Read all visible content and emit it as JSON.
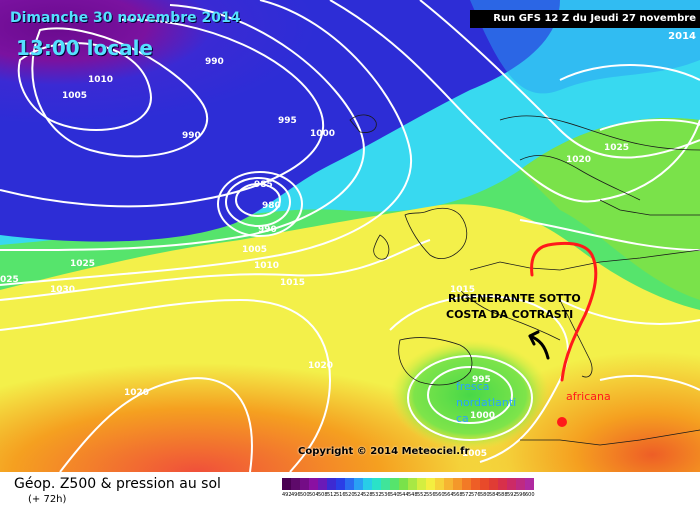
{
  "header": {
    "date_line": "Dimanche 30 novembre 2014",
    "time_line": "13:00 locale",
    "run_info": "Run GFS 12 Z du Jeudi 27 novembre 2014"
  },
  "map": {
    "copyright": "Copyright © 2014 Meteociel.fr",
    "isobar_labels": [
      "990",
      "1010",
      "1005",
      "990",
      "995",
      "1000",
      "985",
      "980",
      "990",
      "1005",
      "1010",
      "1015",
      "1025",
      "1030",
      "1020",
      "1025",
      "1020",
      "1015",
      "1020",
      "995",
      "1000",
      "1005",
      "025"
    ],
    "annotations": {
      "main_line1": "RIGENERANTE SOTTO",
      "main_line2": "COSTA DA COTRASTI",
      "cyan_line1": "fresca",
      "cyan_line2": "nordatlanti",
      "cyan_line3": "ca",
      "red_label": "africana"
    },
    "colors": {
      "deep_low": "#7a0a9a",
      "low": "#2d2dd6",
      "cyan": "#38d9f0",
      "green": "#48d848",
      "yellow": "#f3f04a",
      "orange": "#f5a020",
      "red": "#f0503a",
      "annotation_red": "#ff1a1a"
    }
  },
  "footer": {
    "title": "Géop. Z500 & pression au sol",
    "lead_time": "(+ 72h)",
    "scale_values": [
      "492",
      "496",
      "500",
      "504",
      "508",
      "512",
      "516",
      "520",
      "524",
      "528",
      "532",
      "536",
      "540",
      "544",
      "548",
      "552",
      "556",
      "560",
      "564",
      "568",
      "572",
      "576",
      "580",
      "584",
      "588",
      "592",
      "596",
      "600"
    ],
    "scale_colors": [
      "#4a0052",
      "#5e0a6a",
      "#740c86",
      "#8a10a2",
      "#6a1ab8",
      "#3d2ad2",
      "#2a3ee6",
      "#2a6cf0",
      "#2aa0f4",
      "#28cde8",
      "#2ae2c8",
      "#40e49a",
      "#56e46c",
      "#7ae24a",
      "#a8e844",
      "#d4ee40",
      "#f4ee40",
      "#f6d23a",
      "#f6b432",
      "#f4982a",
      "#f27a26",
      "#ee5e26",
      "#e84a2a",
      "#e03c34",
      "#d8304a",
      "#cc2a66",
      "#be2a82",
      "#b02aa0"
    ]
  }
}
